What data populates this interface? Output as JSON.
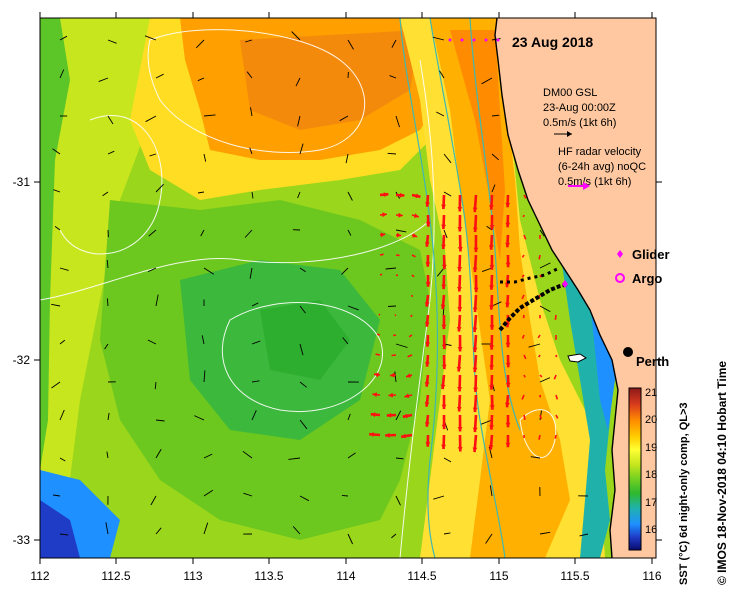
{
  "map": {
    "date_label": "23 Aug 2018",
    "model_block": {
      "line1": "DM00 GSL",
      "line2": "23-Aug 00:00Z",
      "scale": "0.5m/s (1kt 6h)"
    },
    "radar_block": {
      "line1": "HF radar velocity",
      "line2": "(6-24h avg) noQC",
      "scale": "0.5m/s (1kt 6h)"
    },
    "legend_items": [
      {
        "label": "Glider",
        "color": "#ff00ff",
        "symbol": "diamond"
      },
      {
        "label": "Argo",
        "color": "#ff00ff",
        "symbol": "ring"
      }
    ],
    "city": {
      "label": "Perth",
      "marker": "black-dot"
    },
    "x_ticks": [
      "112",
      "112.5",
      "113",
      "113.5",
      "114",
      "114.5",
      "115",
      "115.5",
      "116"
    ],
    "y_ticks": [
      "-31",
      "-32",
      "-33"
    ],
    "colorbar": {
      "title": "SST (°C) 6d night-only comp, QL>3",
      "ticks": [
        "21",
        "20",
        "19",
        "18",
        "17",
        "16"
      ],
      "colors": [
        "#8b1a1a",
        "#d83a1c",
        "#ff8c00",
        "#ffcc00",
        "#ffff33",
        "#c8e61e",
        "#7ed321",
        "#2eb82e",
        "#20b2aa",
        "#1e90ff",
        "#1f3cc7",
        "#0a0a6e"
      ]
    },
    "credit": "© IMOS 18-Nov-2018 04:10 Hobart Time",
    "colors": {
      "land": "#ffc8a0",
      "radar_arrows": "#ff1010",
      "model_arrows": "#000000",
      "contours": "#ffffff",
      "bathymetry": "#40b8b0"
    }
  }
}
